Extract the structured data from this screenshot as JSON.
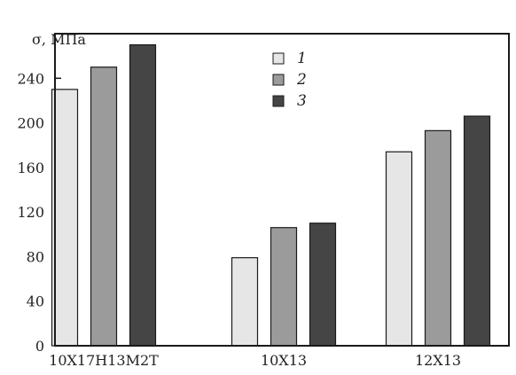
{
  "chart_data": {
    "type": "bar",
    "ylabel": "σ, МПа",
    "ylim": [
      0,
      280
    ],
    "yticks": [
      0,
      40,
      80,
      120,
      160,
      200,
      240
    ],
    "categories": [
      "10Х17Н13М2Т",
      "10Х13",
      "12Х13"
    ],
    "series": [
      {
        "name": "1",
        "values": [
          230,
          79,
          174
        ],
        "color": "#e6e6e6"
      },
      {
        "name": "2",
        "values": [
          250,
          106,
          193
        ],
        "color": "#9b9b9b"
      },
      {
        "name": "3",
        "values": [
          270,
          110,
          206
        ],
        "color": "#454545"
      }
    ],
    "legend_position": "top-center",
    "grid": false
  }
}
